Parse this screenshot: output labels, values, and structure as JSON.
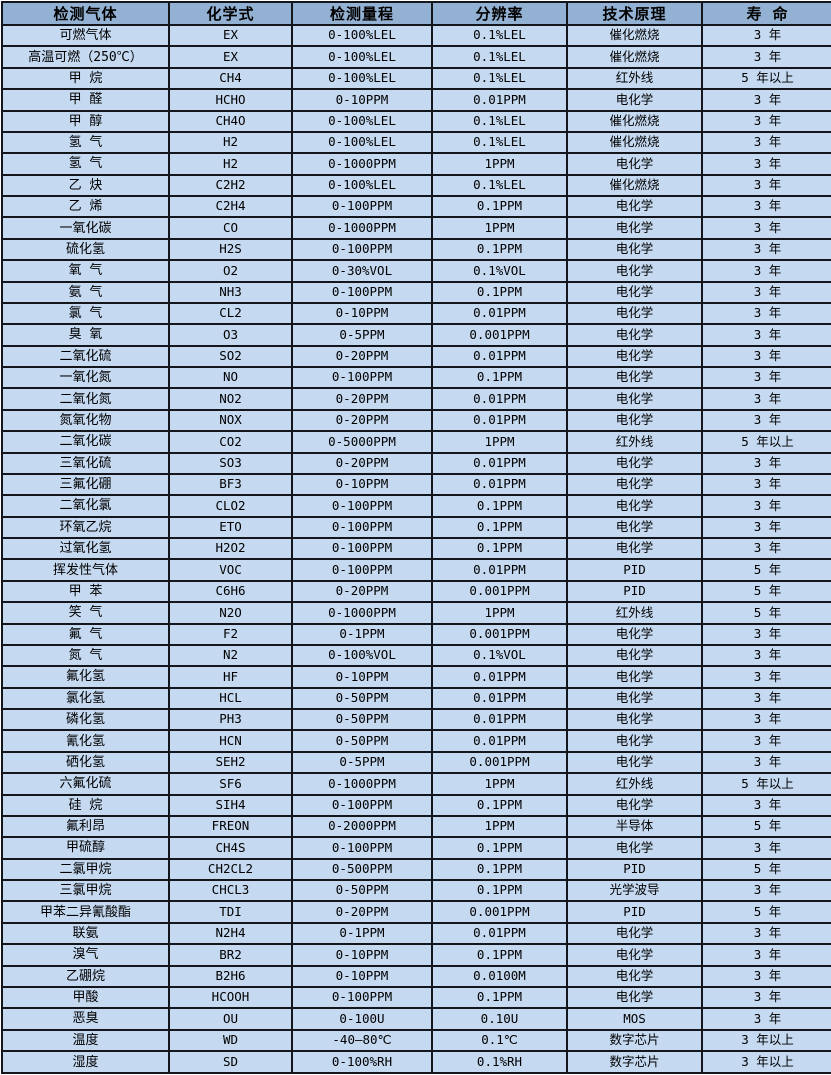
{
  "theme": {
    "header_bg": "#93b1d3",
    "row_bg": "#c5d9f1",
    "border_color": "#15151c",
    "text_color": "#000000"
  },
  "table": {
    "headers": [
      "检测气体",
      "化学式",
      "检测量程",
      "分辨率",
      "技术原理",
      "寿 命"
    ],
    "rows": [
      [
        "可燃气体",
        "EX",
        "0-100%LEL",
        "0.1%LEL",
        "催化燃烧",
        "3 年"
      ],
      [
        "高温可燃（250℃）",
        "EX",
        "0-100%LEL",
        "0.1%LEL",
        "催化燃烧",
        "3 年"
      ],
      [
        "甲 烷",
        "CH4",
        "0-100%LEL",
        "0.1%LEL",
        "红外线",
        "5 年以上"
      ],
      [
        "甲 醛",
        "HCHO",
        "0-10PPM",
        "0.01PPM",
        "电化学",
        "3 年"
      ],
      [
        "甲 醇",
        "CH4O",
        "0-100%LEL",
        "0.1%LEL",
        "催化燃烧",
        "3 年"
      ],
      [
        "氢 气",
        "H2",
        "0-100%LEL",
        "0.1%LEL",
        "催化燃烧",
        "3 年"
      ],
      [
        "氢 气",
        "H2",
        "0-1000PPM",
        "1PPM",
        "电化学",
        "3 年"
      ],
      [
        "乙 炔",
        "C2H2",
        "0-100%LEL",
        "0.1%LEL",
        "催化燃烧",
        "3 年"
      ],
      [
        "乙 烯",
        "C2H4",
        "0-100PPM",
        "0.1PPM",
        "电化学",
        "3 年"
      ],
      [
        "一氧化碳",
        "CO",
        "0-1000PPM",
        "1PPM",
        "电化学",
        "3 年"
      ],
      [
        "硫化氢",
        "H2S",
        "0-100PPM",
        "0.1PPM",
        "电化学",
        "3 年"
      ],
      [
        "氧 气",
        "O2",
        "0-30%VOL",
        "0.1%VOL",
        "电化学",
        "3 年"
      ],
      [
        "氨 气",
        "NH3",
        "0-100PPM",
        "0.1PPM",
        "电化学",
        "3 年"
      ],
      [
        "氯 气",
        "CL2",
        "0-10PPM",
        "0.01PPM",
        "电化学",
        "3 年"
      ],
      [
        "臭 氧",
        "O3",
        "0-5PPM",
        "0.001PPM",
        "电化学",
        "3 年"
      ],
      [
        "二氧化硫",
        "SO2",
        "0-20PPM",
        "0.01PPM",
        "电化学",
        "3 年"
      ],
      [
        "一氧化氮",
        "NO",
        "0-100PPM",
        "0.1PPM",
        "电化学",
        "3 年"
      ],
      [
        "二氧化氮",
        "NO2",
        "0-20PPM",
        "0.01PPM",
        "电化学",
        "3 年"
      ],
      [
        "氮氧化物",
        "NOX",
        "0-20PPM",
        "0.01PPM",
        "电化学",
        "3 年"
      ],
      [
        "二氧化碳",
        "CO2",
        "0-5000PPM",
        "1PPM",
        "红外线",
        "5 年以上"
      ],
      [
        "三氧化硫",
        "SO3",
        "0-20PPM",
        "0.01PPM",
        "电化学",
        "3 年"
      ],
      [
        "三氟化硼",
        "BF3",
        "0-10PPM",
        "0.01PPM",
        "电化学",
        "3 年"
      ],
      [
        "二氧化氯",
        "CLO2",
        "0-100PPM",
        "0.1PPM",
        "电化学",
        "3 年"
      ],
      [
        "环氧乙烷",
        "ETO",
        "0-100PPM",
        "0.1PPM",
        "电化学",
        "3 年"
      ],
      [
        "过氧化氢",
        "H2O2",
        "0-100PPM",
        "0.1PPM",
        "电化学",
        "3 年"
      ],
      [
        "挥发性气体",
        "VOC",
        "0-100PPM",
        "0.01PPM",
        "PID",
        "5 年"
      ],
      [
        "甲 苯",
        "C6H6",
        "0-20PPM",
        "0.001PPM",
        "PID",
        "5 年"
      ],
      [
        "笑 气",
        "N2O",
        "0-1000PPM",
        "1PPM",
        "红外线",
        "5 年"
      ],
      [
        "氟 气",
        "F2",
        "0-1PPM",
        "0.001PPM",
        "电化学",
        "3 年"
      ],
      [
        "氮 气",
        "N2",
        "0-100%VOL",
        "0.1%VOL",
        "电化学",
        "3 年"
      ],
      [
        "氟化氢",
        "HF",
        "0-10PPM",
        "0.01PPM",
        "电化学",
        "3 年"
      ],
      [
        "氯化氢",
        "HCL",
        "0-50PPM",
        "0.01PPM",
        "电化学",
        "3 年"
      ],
      [
        "磷化氢",
        "PH3",
        "0-50PPM",
        "0.01PPM",
        "电化学",
        "3 年"
      ],
      [
        "氰化氢",
        "HCN",
        "0-50PPM",
        "0.01PPM",
        "电化学",
        "3 年"
      ],
      [
        "硒化氢",
        "SEH2",
        "0-5PPM",
        "0.001PPM",
        "电化学",
        "3 年"
      ],
      [
        "六氟化硫",
        "SF6",
        "0-1000PPM",
        "1PPM",
        "红外线",
        "5 年以上"
      ],
      [
        "硅 烷",
        "SIH4",
        "0-100PPM",
        "0.1PPM",
        "电化学",
        "3 年"
      ],
      [
        "氟利昂",
        "FREON",
        "0-2000PPM",
        "1PPM",
        "半导体",
        "5 年"
      ],
      [
        "甲硫醇",
        "CH4S",
        "0-100PPM",
        "0.1PPM",
        "电化学",
        "3 年"
      ],
      [
        "二氯甲烷",
        "CH2CL2",
        "0-500PPM",
        "0.1PPM",
        "PID",
        "5 年"
      ],
      [
        "三氯甲烷",
        "CHCL3",
        "0-50PPM",
        "0.1PPM",
        "光学波导",
        "3 年"
      ],
      [
        "甲苯二异氰酸酯",
        "TDI",
        "0-20PPM",
        "0.001PPM",
        "PID",
        "5 年"
      ],
      [
        "联氨",
        "N2H4",
        "0-1PPM",
        "0.01PPM",
        "电化学",
        "3 年"
      ],
      [
        "溴气",
        "BR2",
        "0-10PPM",
        "0.1PPM",
        "电化学",
        "3 年"
      ],
      [
        "乙硼烷",
        "B2H6",
        "0-10PPM",
        "0.0100M",
        "电化学",
        "3 年"
      ],
      [
        "甲酸",
        "HCOOH",
        "0-100PPM",
        "0.1PPM",
        "电化学",
        "3 年"
      ],
      [
        "恶臭",
        "OU",
        "0-100U",
        "0.10U",
        "MOS",
        "3 年"
      ],
      [
        "温度",
        "WD",
        "-40—80℃",
        "0.1℃",
        "数字芯片",
        "3 年以上"
      ],
      [
        "湿度",
        "SD",
        "0-100%RH",
        "0.1%RH",
        "数字芯片",
        "3 年以上"
      ]
    ],
    "column_keys": [
      "gas",
      "formula",
      "range",
      "resolution",
      "principle",
      "lifespan"
    ]
  }
}
